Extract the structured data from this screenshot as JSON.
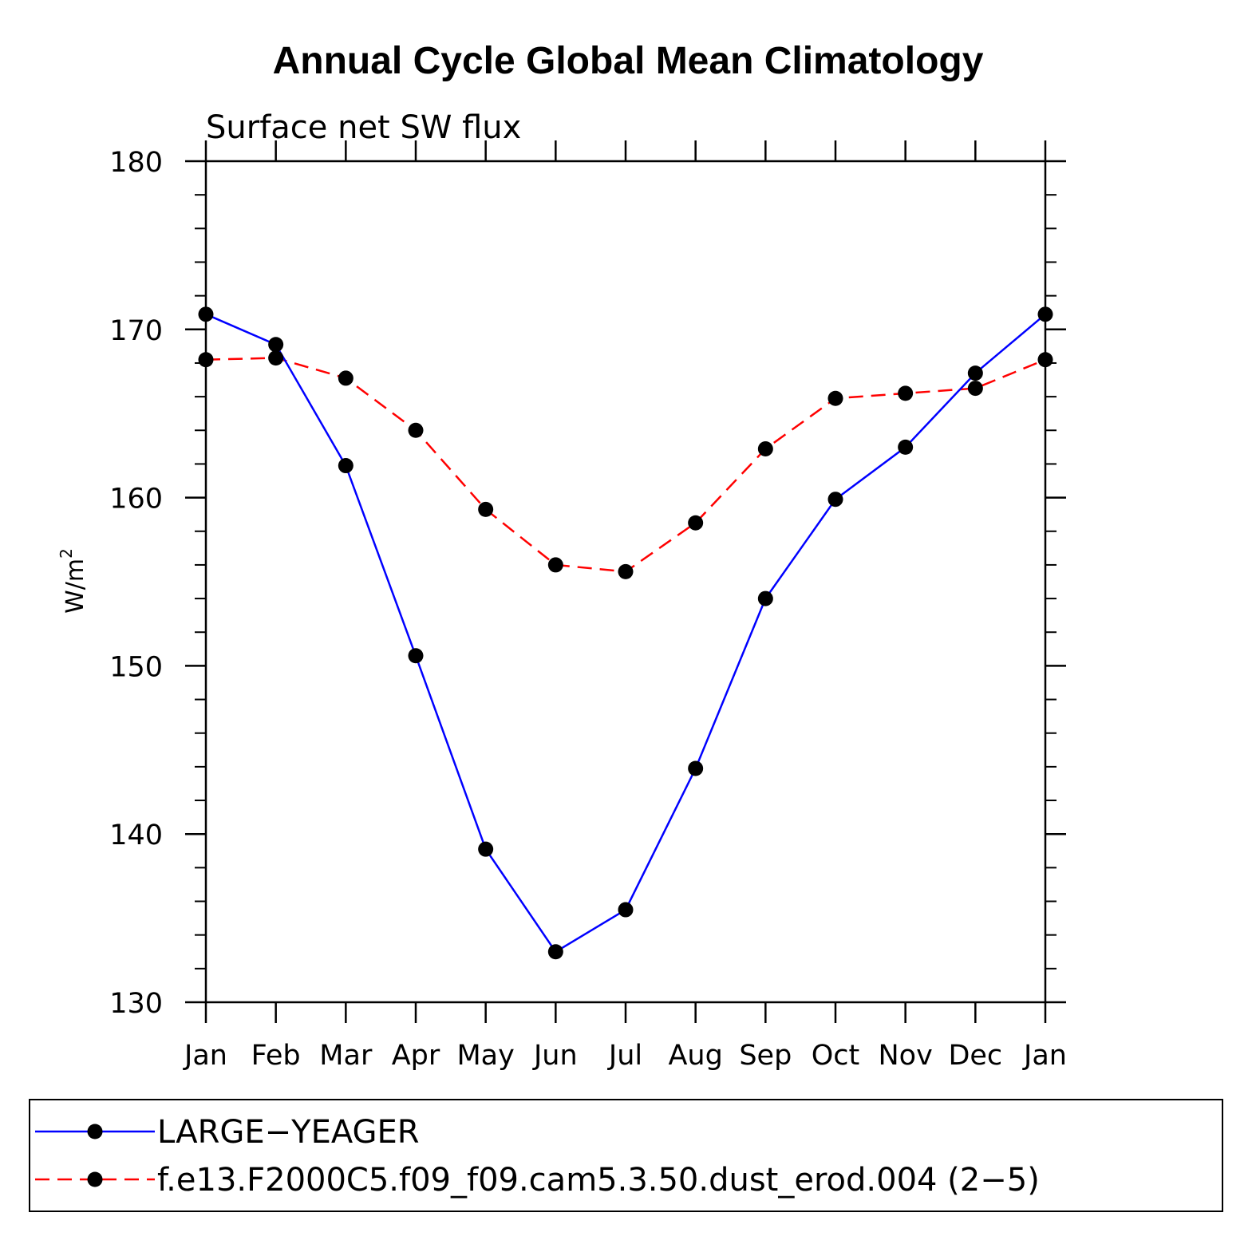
{
  "chart_data": {
    "type": "line",
    "title": "Annual Cycle Global Mean Climatology",
    "subtitle": "Surface net SW flux",
    "ylabel": "W/m",
    "ylabel_sup": "2",
    "xlabel": "",
    "categories": [
      "Jan",
      "Feb",
      "Mar",
      "Apr",
      "May",
      "Jun",
      "Jul",
      "Aug",
      "Sep",
      "Oct",
      "Nov",
      "Dec",
      "Jan"
    ],
    "ylim": [
      130,
      180
    ],
    "yticks": [
      "130",
      "140",
      "150",
      "160",
      "170",
      "180"
    ],
    "grid": false,
    "legend_position": "bottom",
    "series": [
      {
        "name": "LARGE−YEAGER",
        "color": "#0000ff",
        "line_style": "solid",
        "marker": "filled-circle",
        "values": [
          170.9,
          169.1,
          161.9,
          150.6,
          139.1,
          133.0,
          135.5,
          143.9,
          154.0,
          159.9,
          163.0,
          167.4,
          170.9
        ]
      },
      {
        "name": "f.e13.F2000C5.f09_f09.cam5.3.50.dust_erod.004 (2−5)",
        "color": "#ff0000",
        "line_style": "dashed",
        "marker": "filled-circle",
        "values": [
          168.2,
          168.3,
          167.1,
          164.0,
          159.3,
          156.0,
          155.6,
          158.5,
          162.9,
          165.9,
          166.2,
          166.5,
          168.2
        ]
      }
    ]
  }
}
